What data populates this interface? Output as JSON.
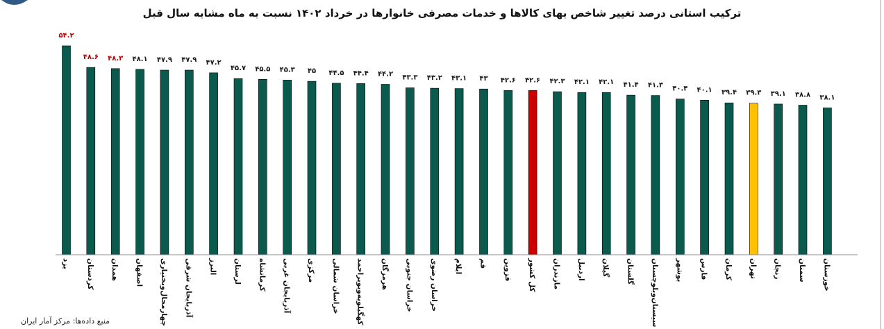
{
  "source": "منبع داده‌ها: مرکز آمار ایران",
  "colors": {
    "default": "#0b5a4e",
    "highlight_country": "#cc0000",
    "highlight_tehran": "#ffc000",
    "label_red": "#c00000",
    "label_default": "#1a1a1a"
  },
  "chart_data": {
    "type": "bar",
    "title": "ترکیب استانی درصد تغییر شاخص بهای کالاها و خدمات مصرفی خانوارها در خرداد ۱۴۰۲ نسبت به ماه مشابه سال قبل",
    "xlabel": "",
    "ylabel": "",
    "ylim": [
      0,
      56
    ],
    "grid": false,
    "categories": [
      "یزد",
      "کردستان",
      "همدان",
      "اصفهان",
      "چهارمحال‌وبختیاری",
      "آذربایجان شرقی",
      "البرز",
      "لرستان",
      "کرمانشاه",
      "آذربایجان غربی",
      "مرکزی",
      "خراسان شمالی",
      "کهگیلویه‌وبویراحمد",
      "هرمزگان",
      "خراسان جنوبی",
      "خراسان رضوی",
      "ایلام",
      "قم",
      "قزوین",
      "کل کشور",
      "مازندران",
      "اردبیل",
      "گیلان",
      "گلستان",
      "سیستان‌وبلوچستان",
      "بوشهر",
      "فارس",
      "کرمان",
      "تهران",
      "زنجان",
      "سمنان",
      "خوزستان"
    ],
    "values": [
      54.2,
      48.6,
      48.3,
      48.1,
      47.9,
      47.9,
      47.2,
      45.7,
      45.5,
      45.3,
      45,
      44.5,
      44.4,
      44.2,
      43.3,
      43.2,
      43.1,
      43,
      42.6,
      42.6,
      42.3,
      42.1,
      42.1,
      41.4,
      41.3,
      40.4,
      40.1,
      39.4,
      39.3,
      39.1,
      38.8,
      38.1
    ],
    "value_labels": [
      "۵۴.۲",
      "۴۸.۶",
      "۴۸.۳",
      "۴۸.۱",
      "۴۷.۹",
      "۴۷.۹",
      "۴۷.۲",
      "۴۵.۷",
      "۴۵.۵",
      "۴۵.۳",
      "۴۵",
      "۴۴.۵",
      "۴۴.۴",
      "۴۴.۲",
      "۴۳.۳",
      "۴۳.۲",
      "۴۳.۱",
      "۴۳",
      "۴۲.۶",
      "۴۲.۶",
      "۴۲.۳",
      "۴۲.۱",
      "۴۲.۱",
      "۴۱.۴",
      "۴۱.۳",
      "۴۰.۴",
      "۴۰.۱",
      "۳۹.۴",
      "۳۹.۳",
      "۳۹.۱",
      "۳۸.۸",
      "۳۸.۱"
    ],
    "bar_colors": [
      "default",
      "default",
      "default",
      "default",
      "default",
      "default",
      "default",
      "default",
      "default",
      "default",
      "default",
      "default",
      "default",
      "default",
      "default",
      "default",
      "default",
      "default",
      "default",
      "highlight_country",
      "default",
      "default",
      "default",
      "default",
      "default",
      "default",
      "default",
      "default",
      "highlight_tehran",
      "default",
      "default",
      "default"
    ],
    "label_colors": [
      "label_red",
      "label_red",
      "label_red",
      "label_default",
      "label_default",
      "label_default",
      "label_default",
      "label_default",
      "label_default",
      "label_default",
      "label_default",
      "label_default",
      "label_default",
      "label_default",
      "label_default",
      "label_default",
      "label_default",
      "label_default",
      "label_default",
      "label_default",
      "label_default",
      "label_default",
      "label_default",
      "label_default",
      "label_default",
      "label_default",
      "label_default",
      "label_default",
      "label_default",
      "label_default",
      "label_default",
      "label_default"
    ]
  }
}
